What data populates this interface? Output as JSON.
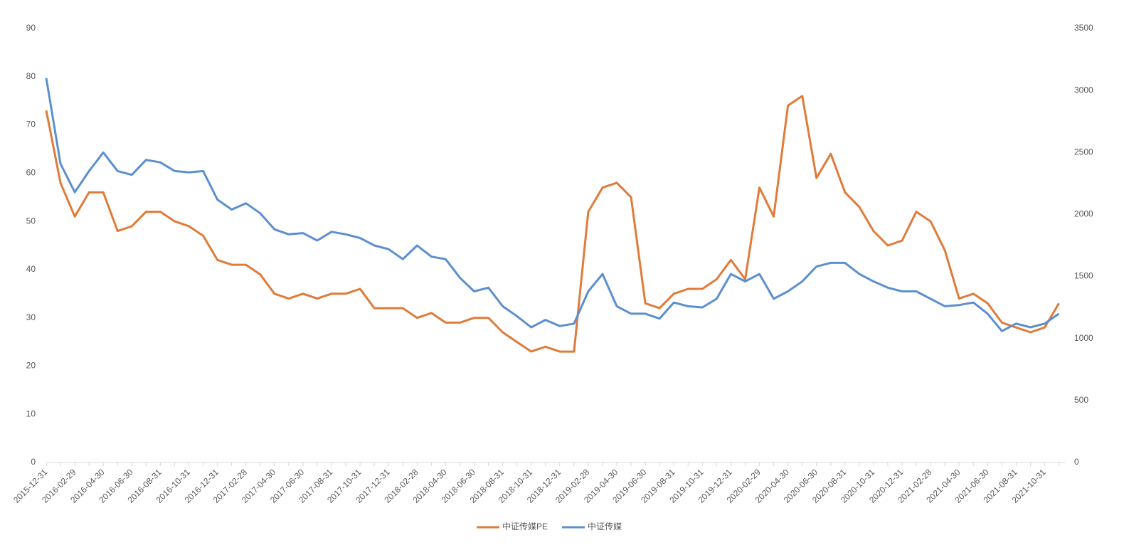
{
  "chart_data": {
    "type": "line",
    "categories": [
      "2015-12-31",
      null,
      "2016-02-29",
      null,
      "2016-04-30",
      null,
      "2016-06-30",
      null,
      "2016-08-31",
      null,
      "2016-10-31",
      null,
      "2016-12-31",
      null,
      "2017-02-28",
      null,
      "2017-04-30",
      null,
      "2017-06-30",
      null,
      "2017-08-31",
      null,
      "2017-10-31",
      null,
      "2017-12-31",
      null,
      "2018-02-28",
      null,
      "2018-04-30",
      null,
      "2018-06-30",
      null,
      "2018-08-31",
      null,
      "2018-10-31",
      null,
      "2018-12-31",
      null,
      "2019-02-28",
      null,
      "2019-04-30",
      null,
      "2019-06-30",
      null,
      "2019-08-31",
      null,
      "2019-10-31",
      null,
      "2019-12-31",
      null,
      "2020-02-29",
      null,
      "2020-04-30",
      null,
      "2020-06-30",
      null,
      "2020-08-31",
      null,
      "2020-10-31",
      null,
      "2020-12-31",
      null,
      "2021-02-28",
      null,
      "2021-04-30",
      null,
      "2021-06-30",
      null,
      "2021-08-31",
      null,
      "2021-10-31",
      null
    ],
    "series": [
      {
        "name": "中证传媒PE",
        "color": "#e07b39",
        "axis": "y",
        "values": [
          73,
          58,
          51,
          56,
          56,
          48,
          49,
          52,
          52,
          50,
          49,
          47,
          42,
          41,
          41,
          39,
          35,
          34,
          35,
          34,
          35,
          35,
          36,
          32,
          32,
          32,
          30,
          31,
          29,
          29,
          30,
          30,
          27,
          25,
          23,
          24,
          23,
          23,
          52,
          57,
          58,
          55,
          33,
          32,
          35,
          36,
          36,
          38,
          42,
          38,
          57,
          51,
          74,
          76,
          59,
          64,
          56,
          53,
          48,
          45,
          46,
          52,
          50,
          44,
          34,
          35,
          33,
          29,
          28,
          27,
          28,
          33
        ]
      },
      {
        "name": "中证传媒",
        "color": "#5b8fcf",
        "axis": "y2",
        "values": [
          3100,
          2410,
          2180,
          2350,
          2500,
          2350,
          2320,
          2440,
          2420,
          2350,
          2340,
          2350,
          2120,
          2040,
          2090,
          2010,
          1880,
          1840,
          1850,
          1790,
          1860,
          1840,
          1810,
          1750,
          1720,
          1640,
          1750,
          1660,
          1640,
          1490,
          1380,
          1410,
          1260,
          1180,
          1090,
          1150,
          1100,
          1120,
          1380,
          1520,
          1260,
          1200,
          1200,
          1160,
          1290,
          1260,
          1250,
          1320,
          1520,
          1460,
          1520,
          1320,
          1380,
          1460,
          1580,
          1610,
          1610,
          1520,
          1460,
          1410,
          1380,
          1380,
          1320,
          1260,
          1270,
          1290,
          1200,
          1060,
          1120,
          1090,
          1120,
          1200
        ]
      }
    ],
    "ylim": [
      0,
      90
    ],
    "yticks": [
      0,
      10,
      20,
      30,
      40,
      50,
      60,
      70,
      80,
      90
    ],
    "y2lim": [
      0,
      3500
    ],
    "y2ticks": [
      0,
      500,
      1000,
      1500,
      2000,
      2500,
      3000,
      3500
    ],
    "grid": false,
    "legend": "bottom"
  }
}
